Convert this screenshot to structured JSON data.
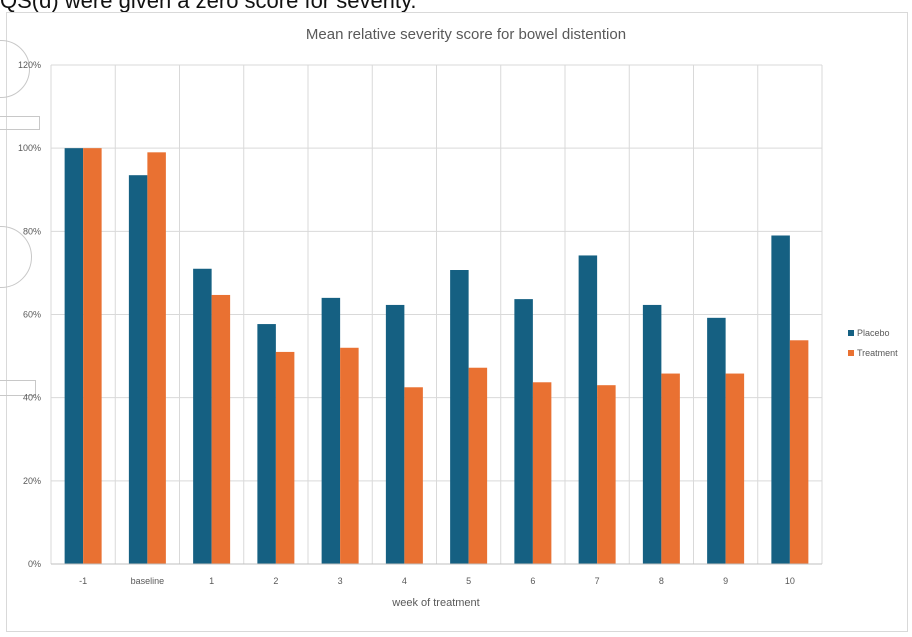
{
  "document": {
    "partial_text": "QS(d) were given a zero score for severity."
  },
  "chart_data": {
    "type": "bar",
    "title": "Mean relative severity score for bowel distention",
    "xlabel": "week of treatment",
    "ylabel": "",
    "categories": [
      "-1",
      "baseline",
      "1",
      "2",
      "3",
      "4",
      "5",
      "6",
      "7",
      "8",
      "9",
      "10"
    ],
    "series": [
      {
        "name": "Placebo",
        "color": "#156082",
        "values": [
          100,
          93.5,
          71,
          57.7,
          64,
          62.3,
          70.7,
          63.7,
          74.2,
          62.3,
          59.2,
          79
        ]
      },
      {
        "name": "Treatment",
        "color": "#e97132",
        "values": [
          100,
          99,
          64.7,
          51,
          52,
          42.5,
          47.2,
          43.7,
          43,
          45.8,
          45.8,
          53.8
        ]
      }
    ],
    "ylim": [
      0,
      120
    ],
    "yticks": [
      0,
      20,
      40,
      60,
      80,
      100,
      120
    ],
    "ytick_format": "percent",
    "grid": true,
    "legend_position": "right"
  }
}
